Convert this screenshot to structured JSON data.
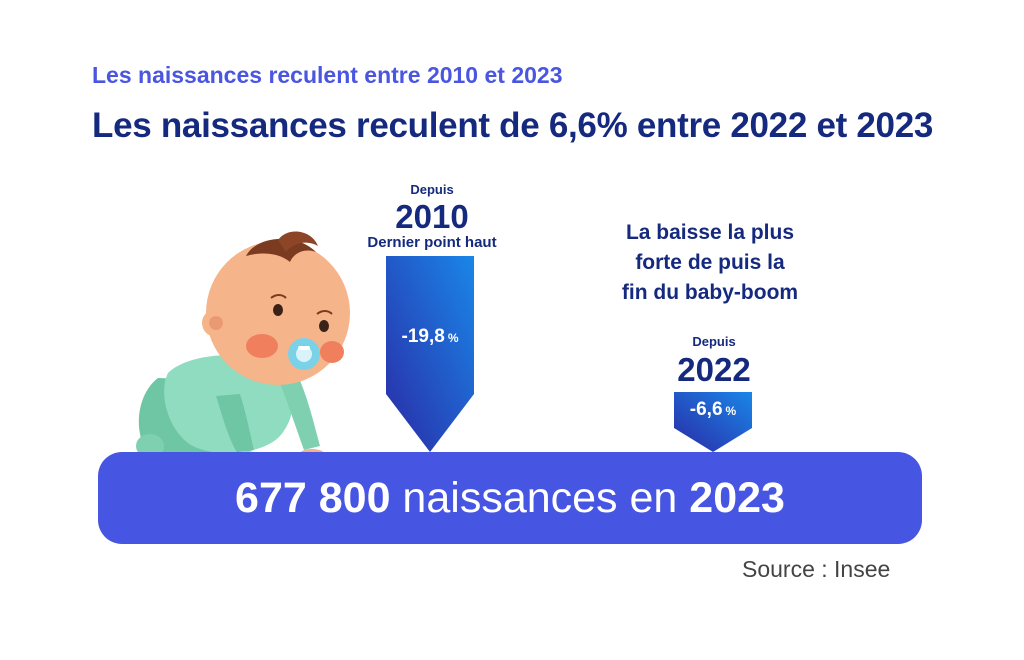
{
  "header": {
    "subtitle": "Les naissances reculent entre 2010 et 2023",
    "title": "Les naissances reculent de 6,6% entre 2022 et 2023"
  },
  "marker_2010": {
    "since": "Depuis",
    "year": "2010",
    "caption": "Dernier point haut",
    "value": "-19,8",
    "unit": "%"
  },
  "marker_2022": {
    "since": "Depuis",
    "year": "2022",
    "value": "-6,6",
    "unit": "%"
  },
  "note": {
    "line1": "La baisse la plus",
    "line2": "forte de puis la",
    "line3": "fin du baby-boom"
  },
  "total": {
    "number": "677 800",
    "text": " naissances en ",
    "year": "2023"
  },
  "source": "Source : Insee",
  "colors": {
    "dark_blue": "#152a7e",
    "accent_blue": "#4655e2",
    "arrow_light": "#1a86e8",
    "arrow_dark": "#2a2aa6"
  }
}
